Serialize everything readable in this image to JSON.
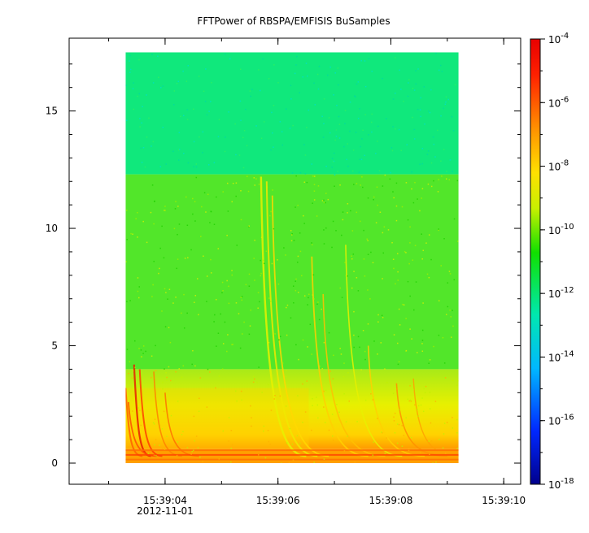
{
  "chart_data": {
    "type": "heatmap",
    "title": "FFTPower of RBSPA/EMFISIS  BuSamples",
    "xlabel": "",
    "ylabel": "",
    "x_axis": {
      "ticks": [
        {
          "value": "15:39:04",
          "label": "15:39:04"
        },
        {
          "value": "15:39:06",
          "label": "15:39:06"
        },
        {
          "value": "15:39:08",
          "label": "15:39:08"
        },
        {
          "value": "15:39:10",
          "label": "15:39:10"
        }
      ],
      "date_label": "2012-11-01",
      "range": [
        "15:39:02.3",
        "15:39:10.3"
      ]
    },
    "y_axis": {
      "ticks": [
        0,
        5,
        10,
        15
      ],
      "range": [
        -0.9,
        18.1
      ]
    },
    "data_extent": {
      "x": [
        "15:39:03.3",
        "15:39:09.2"
      ],
      "y": [
        0,
        17.5
      ]
    },
    "colorbar": {
      "scale": "log",
      "range": [
        1e-18,
        0.0001
      ],
      "ticks": [
        {
          "value": 0.0001,
          "base": "10",
          "exp": "-4"
        },
        {
          "value": 1e-06,
          "base": "10",
          "exp": "-6"
        },
        {
          "value": 1e-08,
          "base": "10",
          "exp": "-8"
        },
        {
          "value": 1e-10,
          "base": "10",
          "exp": "-10"
        },
        {
          "value": 1e-12,
          "base": "10",
          "exp": "-12"
        },
        {
          "value": 1e-14,
          "base": "10",
          "exp": "-14"
        },
        {
          "value": 1e-16,
          "base": "10",
          "exp": "-16"
        },
        {
          "value": 1e-18,
          "base": "10",
          "exp": "-18"
        }
      ],
      "colors": [
        "#00008c",
        "#0028ff",
        "#00b8ff",
        "#00e8b0",
        "#10e000",
        "#c8f000",
        "#ffe000",
        "#ff9000",
        "#ff2000",
        "#e80000"
      ]
    },
    "bands": [
      {
        "y": [
          12.3,
          17.5
        ],
        "level": 1e-13,
        "color": "#10e87c"
      },
      {
        "y": [
          4.0,
          12.3
        ],
        "level": 1e-10,
        "color": "#52e62a"
      },
      {
        "y": [
          0.6,
          4.0
        ],
        "level": 1e-08,
        "color": "#d8ee20"
      },
      {
        "y": [
          0,
          0.6
        ],
        "level": 1e-06,
        "color": "#ffa000"
      }
    ],
    "grid": false
  }
}
